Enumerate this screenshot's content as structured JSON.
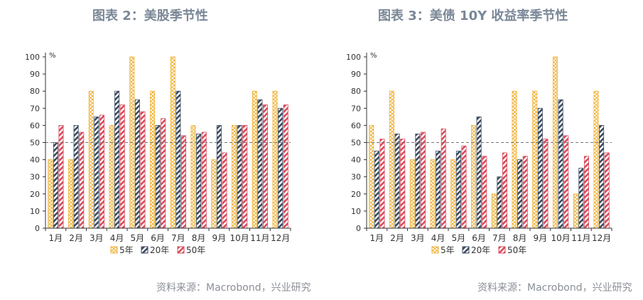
{
  "colors": {
    "y5": "#f0b43c",
    "y20": "#3b4a5e",
    "y50": "#d94a5a",
    "ref": "#777777",
    "axis": "#333333"
  },
  "charts": [
    {
      "title": "图表 2：美股季节性",
      "source": "资料来源：Macrobond，兴业研究",
      "chart_data": {
        "type": "bar",
        "title": "图表 2：美股季节性",
        "ylabel": "%",
        "ylim": [
          0,
          100
        ],
        "yticks": [
          0,
          10,
          20,
          30,
          40,
          50,
          60,
          70,
          80,
          90,
          100
        ],
        "reference_line": 50,
        "legend": "bottom",
        "categories": [
          "1月",
          "2月",
          "3月",
          "4月",
          "5月",
          "6月",
          "7月",
          "8月",
          "9月",
          "10月",
          "11月",
          "12月"
        ],
        "series": [
          {
            "name": "5年",
            "values": [
              40,
              40,
              80,
              60,
              100,
              80,
              100,
              60,
              40,
              60,
              80,
              80
            ]
          },
          {
            "name": "20年",
            "values": [
              50,
              60,
              65,
              80,
              75,
              60,
              80,
              55,
              60,
              60,
              75,
              70
            ]
          },
          {
            "name": "50年",
            "values": [
              60,
              56,
              66,
              72,
              68,
              64,
              54,
              56,
              44,
              60,
              72,
              72
            ]
          }
        ]
      }
    },
    {
      "title": "图表 3：美债 10Y 收益率季节性",
      "source": "资料来源：Macrobond，兴业研究",
      "chart_data": {
        "type": "bar",
        "title": "图表 3：美债 10Y 收益率季节性",
        "ylabel": "%",
        "ylim": [
          0,
          100
        ],
        "yticks": [
          0,
          10,
          20,
          30,
          40,
          50,
          60,
          70,
          80,
          90,
          100
        ],
        "reference_line": 50,
        "legend": "bottom",
        "categories": [
          "1月",
          "2月",
          "3月",
          "4月",
          "5月",
          "6月",
          "7月",
          "8月",
          "9月",
          "10月",
          "11月",
          "12月"
        ],
        "series": [
          {
            "name": "5年",
            "values": [
              60,
              80,
              40,
              40,
              40,
              60,
              20,
              80,
              80,
              100,
              20,
              80
            ]
          },
          {
            "name": "20年",
            "values": [
              45,
              55,
              55,
              45,
              45,
              65,
              30,
              40,
              70,
              75,
              35,
              60
            ]
          },
          {
            "name": "50年",
            "values": [
              52,
              52,
              56,
              58,
              48,
              42,
              44,
              42,
              52,
              54,
              42,
              44
            ]
          }
        ]
      }
    }
  ]
}
